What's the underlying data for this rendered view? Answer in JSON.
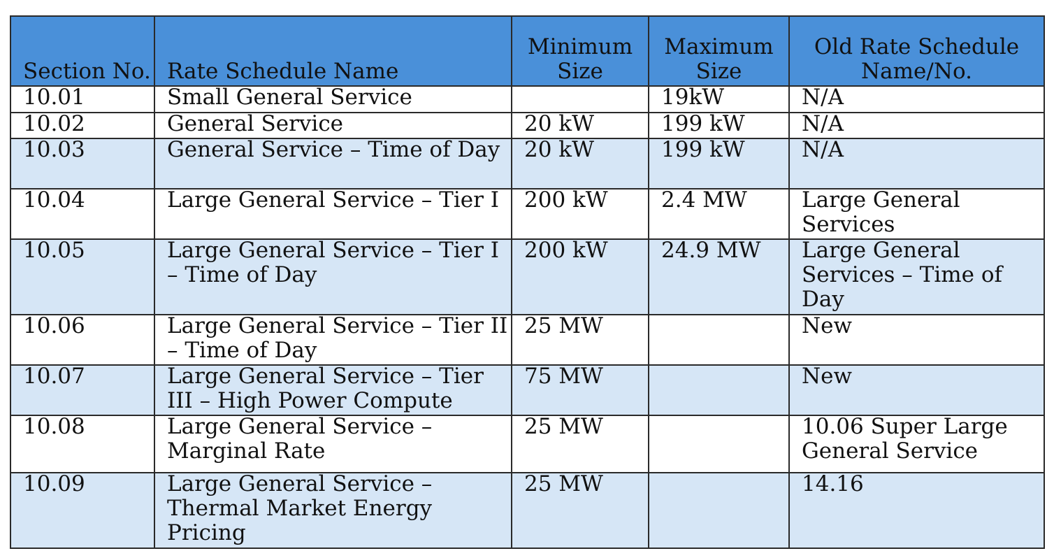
{
  "headers": {
    "section": "Section No.",
    "name": "Rate Schedule Name",
    "min": "Minimum Size",
    "max": "Maximum Size",
    "old": "Old Rate Schedule Name/No."
  },
  "rows": [
    {
      "section": "10.01",
      "name": "Small General Service",
      "min": "",
      "max": "19kW",
      "old": "N/A"
    },
    {
      "section": "10.02",
      "name": "General Service",
      "min": "20 kW",
      "max": "199 kW",
      "old": "N/A"
    },
    {
      "section": "10.03",
      "name": "General Service – Time of Day",
      "min": "20 kW",
      "max": "199 kW",
      "old": "N/A"
    },
    {
      "section": "10.04",
      "name": "Large General Service – Tier I",
      "min": "200 kW",
      "max": "2.4 MW",
      "old": "Large General Services"
    },
    {
      "section": "10.05",
      "name": "Large General Service – Tier I – Time of Day",
      "min": "200 kW",
      "max": "24.9 MW",
      "old": "Large General Services – Time of Day"
    },
    {
      "section": "10.06",
      "name": "Large General Service – Tier II – Time of Day",
      "min": "25 MW",
      "max": "",
      "old": "New"
    },
    {
      "section": "10.07",
      "name": "Large General Service – Tier III – High Power Compute",
      "min": "75 MW",
      "max": "",
      "old": "New"
    },
    {
      "section": "10.08",
      "name": "Large General Service – Marginal Rate",
      "min": "25 MW",
      "max": "",
      "old": "10.06 Super Large General Service"
    },
    {
      "section": "10.09",
      "name": "Large General Service – Thermal Market Energy Pricing",
      "min": "25 MW",
      "max": "",
      "old": "14.16"
    }
  ]
}
